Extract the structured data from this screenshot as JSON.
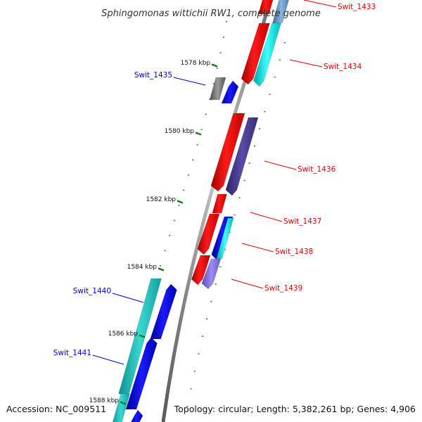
{
  "title": "Sphingomonas wittichii RW1, complete genome",
  "accession": "Accession: NC_009511",
  "topology": "Topology: circular; Length: 5,382,261 bp; Genes: 4,906",
  "colors": {
    "red": "#ff0000",
    "dark_red": "#b00000",
    "cyan": "#00e5e5",
    "teal": "#20c0c0",
    "blue": "#0000e0",
    "slate": "#4a3d8f",
    "lavender": "#8070d8",
    "gray": "#707070",
    "steel": "#6090c0",
    "tick": "#1a7a1a",
    "red_label": "#dd0000",
    "blue_label": "#0000cc"
  },
  "ticks": [
    {
      "label": "1578 kbp"
    },
    {
      "label": "1580 kbp"
    },
    {
      "label": "1582 kbp"
    },
    {
      "label": "1584 kbp"
    },
    {
      "label": "1586 kbp"
    },
    {
      "label": "1588 kbp"
    }
  ],
  "genes": [
    {
      "label": "Swit_1433",
      "strand": "plus",
      "label_color": "red_label"
    },
    {
      "label": "Swit_1434",
      "strand": "plus",
      "label_color": "red_label"
    },
    {
      "label": "Swit_1435",
      "strand": "minus",
      "label_color": "blue_label"
    },
    {
      "label": "Swit_1436",
      "strand": "plus",
      "label_color": "red_label"
    },
    {
      "label": "Swit_1437",
      "strand": "plus",
      "label_color": "red_label"
    },
    {
      "label": "Swit_1438",
      "strand": "plus",
      "label_color": "red_label"
    },
    {
      "label": "Swit_1439",
      "strand": "plus",
      "label_color": "red_label"
    },
    {
      "label": "Swit_1440",
      "strand": "minus",
      "label_color": "blue_label"
    },
    {
      "label": "Swit_1441",
      "strand": "minus",
      "label_color": "blue_label"
    }
  ]
}
